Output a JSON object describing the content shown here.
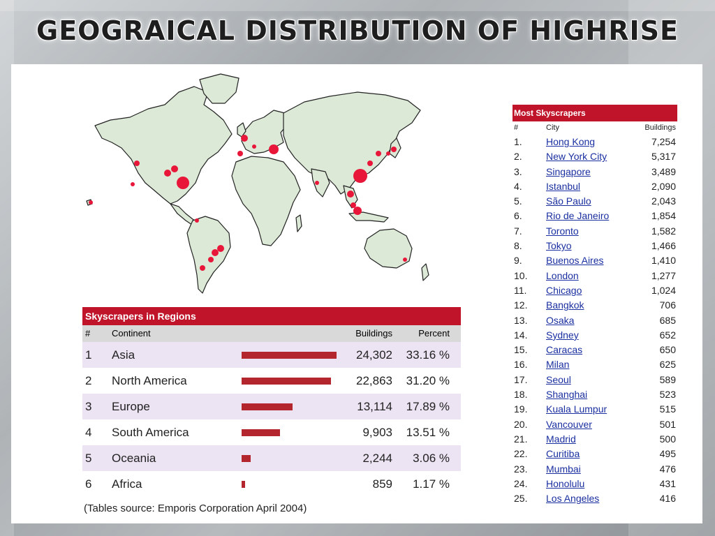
{
  "slide": {
    "title": "GEOGRAICAL DISTRIBUTION OF HIGHRISE"
  },
  "colors": {
    "accent": "#c0142a",
    "bar": "#b3262e",
    "land": "#dce9d6",
    "dot": "#e8173a",
    "link": "#1a2fa0"
  },
  "regions": {
    "heading": "Skyscrapers in Regions",
    "columns": {
      "num": "#",
      "continent": "Continent",
      "buildings": "Buildings",
      "percent": "Percent"
    },
    "rows": [
      {
        "num": "1",
        "continent": "Asia",
        "buildings": "24,302",
        "percent": "33.16 %",
        "share": 33.16
      },
      {
        "num": "2",
        "continent": "North America",
        "buildings": "22,863",
        "percent": "31.20 %",
        "share": 31.2
      },
      {
        "num": "3",
        "continent": "Europe",
        "buildings": "13,114",
        "percent": "17.89 %",
        "share": 17.89
      },
      {
        "num": "4",
        "continent": "South America",
        "buildings": "9,903",
        "percent": "13.51 %",
        "share": 13.51
      },
      {
        "num": "5",
        "continent": "Oceania",
        "buildings": "2,244",
        "percent": "3.06 %",
        "share": 3.06
      },
      {
        "num": "6",
        "continent": "Africa",
        "buildings": "859",
        "percent": "1.17 %",
        "share": 1.17
      }
    ],
    "source": "(Tables source: Emporis Corporation April 2004)"
  },
  "cities": {
    "heading": "Most Skyscrapers",
    "columns": {
      "num": "#",
      "city": "City",
      "buildings": "Buildings"
    },
    "rows": [
      {
        "num": "1.",
        "city": "Hong Kong",
        "buildings": "7,254"
      },
      {
        "num": "2.",
        "city": "New York City",
        "buildings": "5,317"
      },
      {
        "num": "3.",
        "city": "Singapore",
        "buildings": "3,489"
      },
      {
        "num": "4.",
        "city": "Istanbul",
        "buildings": "2,090"
      },
      {
        "num": "5.",
        "city": "São Paulo",
        "buildings": "2,043"
      },
      {
        "num": "6.",
        "city": "Rio de Janeiro",
        "buildings": "1,854"
      },
      {
        "num": "7.",
        "city": "Toronto",
        "buildings": "1,582"
      },
      {
        "num": "8.",
        "city": "Tokyo",
        "buildings": "1,466"
      },
      {
        "num": "9.",
        "city": "Buenos Aires",
        "buildings": "1,410"
      },
      {
        "num": "10.",
        "city": "London",
        "buildings": "1,277"
      },
      {
        "num": "11.",
        "city": "Chicago",
        "buildings": "1,024"
      },
      {
        "num": "12.",
        "city": "Bangkok",
        "buildings": "706"
      },
      {
        "num": "13.",
        "city": "Osaka",
        "buildings": "685"
      },
      {
        "num": "14.",
        "city": "Sydney",
        "buildings": "652"
      },
      {
        "num": "15.",
        "city": "Caracas",
        "buildings": "650"
      },
      {
        "num": "16.",
        "city": "Milan",
        "buildings": "625"
      },
      {
        "num": "17.",
        "city": "Seoul",
        "buildings": "589"
      },
      {
        "num": "18.",
        "city": "Shanghai",
        "buildings": "523"
      },
      {
        "num": "19.",
        "city": "Kuala Lumpur",
        "buildings": "515"
      },
      {
        "num": "20.",
        "city": "Vancouver",
        "buildings": "501"
      },
      {
        "num": "21.",
        "city": "Madrid",
        "buildings": "500"
      },
      {
        "num": "22.",
        "city": "Curitiba",
        "buildings": "495"
      },
      {
        "num": "23.",
        "city": "Mumbai",
        "buildings": "476"
      },
      {
        "num": "24.",
        "city": "Honolulu",
        "buildings": "431"
      },
      {
        "num": "25.",
        "city": "Los Angeles",
        "buildings": "416"
      }
    ]
  }
}
